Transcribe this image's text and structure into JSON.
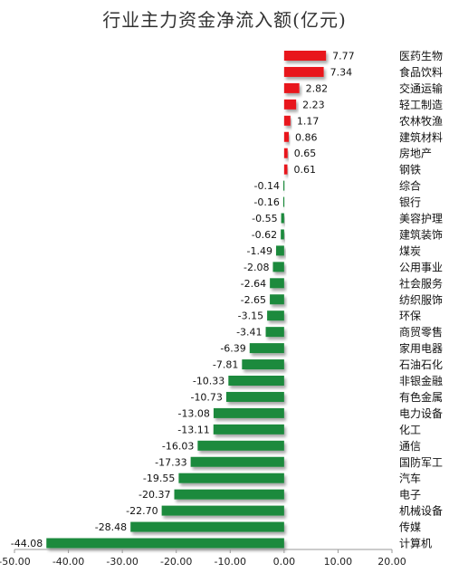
{
  "chart_data": {
    "type": "bar",
    "orientation": "horizontal",
    "title": "行业主力资金净流入额(亿元)",
    "xlabel": "",
    "ylabel": "",
    "xlim": [
      -50,
      20
    ],
    "x_ticks": [
      "-50.00",
      "-40.00",
      "-30.00",
      "-20.00",
      "-10.00",
      "0.00",
      "10.00",
      "20.00"
    ],
    "positive_color": "#e8161b",
    "negative_color": "#1e8a3c",
    "grid": false,
    "legend": "none",
    "categories": [
      "医药生物",
      "食品饮料",
      "交通运输",
      "轻工制造",
      "农林牧渔",
      "建筑材料",
      "房地产",
      "钢铁",
      "综合",
      "银行",
      "美容护理",
      "建筑装饰",
      "煤炭",
      "公用事业",
      "社会服务",
      "纺织服饰",
      "环保",
      "商贸零售",
      "家用电器",
      "石油石化",
      "非银金融",
      "有色金属",
      "电力设备",
      "化工",
      "通信",
      "国防军工",
      "汽车",
      "电子",
      "机械设备",
      "传媒",
      "计算机"
    ],
    "values": [
      7.77,
      7.34,
      2.82,
      2.23,
      1.17,
      0.86,
      0.65,
      0.61,
      -0.14,
      -0.16,
      -0.55,
      -0.62,
      -1.49,
      -2.08,
      -2.64,
      -2.65,
      -3.15,
      -3.41,
      -6.39,
      -7.81,
      -10.33,
      -10.73,
      -13.08,
      -13.11,
      -16.03,
      -17.33,
      -19.55,
      -20.37,
      -22.7,
      -28.48,
      -44.08
    ],
    "value_labels": [
      "7.77",
      "7.34",
      "2.82",
      "2.23",
      "1.17",
      "0.86",
      "0.65",
      "0.61",
      "-0.14",
      "-0.16",
      "-0.55",
      "-0.62",
      "-1.49",
      "-2.08",
      "-2.64",
      "-2.65",
      "-3.15",
      "-3.41",
      "-6.39",
      "-7.81",
      "-10.33",
      "-10.73",
      "-13.08",
      "-13.11",
      "-16.03",
      "-17.33",
      "-19.55",
      "-20.37",
      "-22.70",
      "-28.48",
      "-44.08"
    ]
  }
}
